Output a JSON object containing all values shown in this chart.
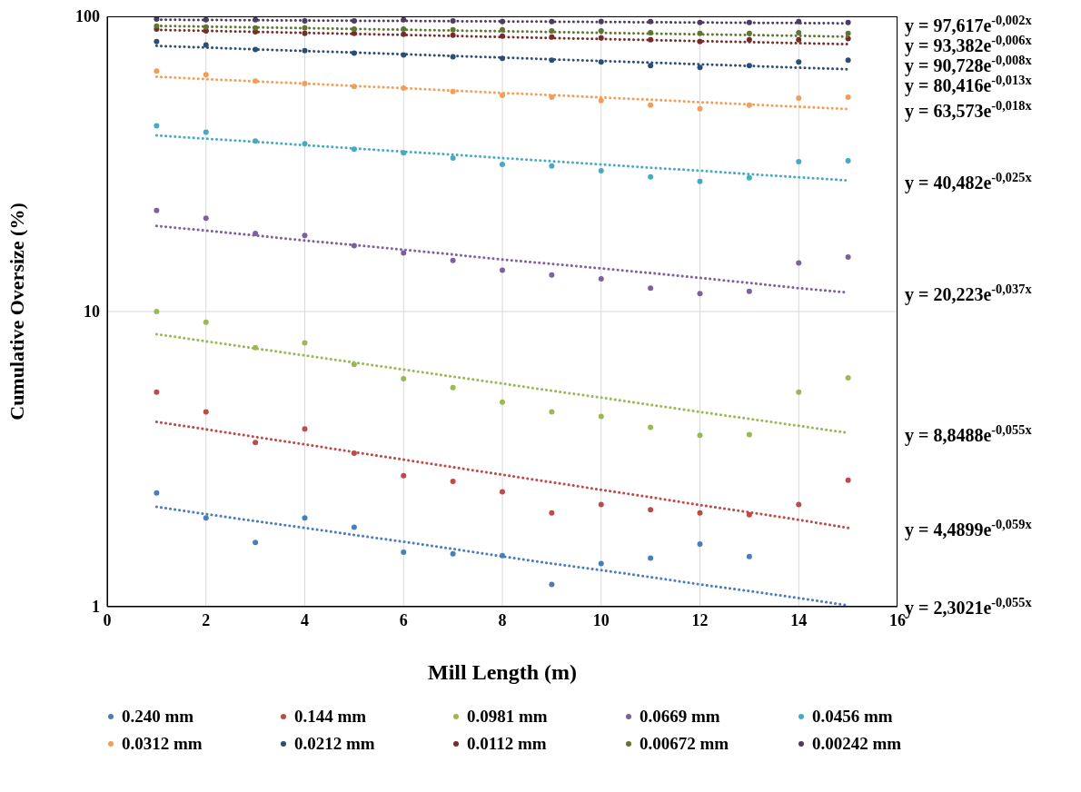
{
  "chart_data": {
    "type": "scatter",
    "xlabel": "Mill Length (m)",
    "ylabel": "Cumulative Oversize (%)",
    "x": [
      1,
      2,
      3,
      4,
      5,
      6,
      7,
      8,
      9,
      10,
      11,
      12,
      13,
      14,
      15
    ],
    "xlim": [
      0,
      16
    ],
    "xticks": [
      0,
      2,
      4,
      6,
      8,
      10,
      12,
      14,
      16
    ],
    "ylim": [
      1,
      100
    ],
    "yticks": [
      1,
      10,
      100
    ],
    "log": "y",
    "grid": true,
    "legend": "bottom",
    "marker": "circle",
    "series": [
      {
        "name": "0.240 mm",
        "color": "#4a7ebb",
        "values": [
          2.43,
          2.0,
          1.65,
          2.0,
          1.86,
          1.53,
          1.51,
          1.49,
          1.19,
          1.4,
          1.46,
          1.63,
          1.48,
          null,
          null
        ]
      },
      {
        "name": "0.144 mm",
        "color": "#be4b48",
        "values": [
          5.33,
          4.57,
          3.6,
          4.0,
          3.31,
          2.78,
          2.66,
          2.45,
          2.08,
          2.22,
          2.13,
          2.08,
          2.05,
          2.22,
          2.68
        ]
      },
      {
        "name": "0.0981 mm",
        "color": "#98b954",
        "values": [
          10.0,
          9.2,
          7.55,
          7.83,
          6.62,
          5.92,
          5.52,
          4.93,
          4.57,
          4.41,
          4.05,
          3.81,
          3.83,
          5.33,
          5.96
        ]
      },
      {
        "name": "0.0669 mm",
        "color": "#7d60a0",
        "values": [
          22.0,
          20.7,
          18.4,
          18.1,
          16.7,
          15.8,
          14.9,
          13.8,
          13.3,
          12.9,
          12.0,
          11.5,
          11.7,
          14.6,
          15.3
        ]
      },
      {
        "name": "0.0456 mm",
        "color": "#46aac5",
        "values": [
          42.6,
          40.5,
          37.8,
          37.0,
          35.5,
          34.5,
          33.1,
          31.5,
          31.1,
          30.0,
          28.6,
          27.6,
          28.4,
          32.2,
          32.4
        ]
      },
      {
        "name": "0.0312 mm",
        "color": "#f59d56",
        "values": [
          65.3,
          63.4,
          60.4,
          59.2,
          57.9,
          57.1,
          55.6,
          54.0,
          53.2,
          51.8,
          50.0,
          48.6,
          50.0,
          52.9,
          53.2
        ]
      },
      {
        "name": "0.0212 mm",
        "color": "#2c4d75",
        "values": [
          82.2,
          80.0,
          77.2,
          76.6,
          75.0,
          74.0,
          73.0,
          72.0,
          71.0,
          70.0,
          68.1,
          67.1,
          68.1,
          70.0,
          71.0
        ]
      },
      {
        "name": "0.0112 mm",
        "color": "#772c2a",
        "values": [
          90.6,
          89.3,
          88.7,
          87.5,
          87.5,
          86.9,
          86.3,
          85.7,
          85.1,
          84.5,
          83.3,
          82.2,
          83.3,
          83.3,
          84.0
        ]
      },
      {
        "name": "0.00672 mm",
        "color": "#5f7530",
        "values": [
          92.6,
          92.0,
          91.3,
          91.3,
          90.6,
          90.6,
          90.0,
          90.0,
          89.3,
          89.3,
          88.1,
          87.5,
          87.5,
          88.1,
          87.5
        ]
      },
      {
        "name": "0.00242 mm",
        "color": "#4d3b62",
        "values": [
          97.9,
          97.3,
          97.3,
          96.6,
          96.6,
          97.3,
          96.6,
          96.0,
          96.0,
          96.0,
          96.0,
          95.3,
          95.3,
          96.0,
          95.3
        ]
      },
      {
        "type": "line",
        "color": "#4a7ebb",
        "values": [
          2.18,
          2.06,
          1.95,
          1.85,
          1.75,
          1.66,
          1.57,
          1.48,
          1.4,
          1.33,
          1.26,
          1.19,
          1.13,
          1.07,
          1.01
        ],
        "line_style": "dotted",
        "marker": "none"
      },
      {
        "type": "line",
        "color": "#be4b48",
        "values": [
          4.23,
          3.99,
          3.76,
          3.55,
          3.34,
          3.15,
          2.97,
          2.8,
          2.64,
          2.49,
          2.35,
          2.21,
          2.09,
          1.97,
          1.85
        ],
        "line_style": "dotted",
        "marker": "none"
      },
      {
        "type": "line",
        "color": "#98b954",
        "values": [
          8.38,
          7.93,
          7.5,
          7.1,
          6.72,
          6.36,
          6.02,
          5.7,
          5.39,
          5.11,
          4.83,
          4.57,
          4.33,
          4.1,
          3.88
        ],
        "line_style": "dotted",
        "marker": "none"
      },
      {
        "type": "line",
        "color": "#7d60a0",
        "values": [
          19.5,
          18.8,
          18.1,
          17.4,
          16.8,
          16.2,
          15.6,
          15.0,
          14.5,
          14.0,
          13.5,
          13.0,
          12.5,
          12.0,
          11.6
        ],
        "line_style": "dotted",
        "marker": "none"
      },
      {
        "type": "line",
        "color": "#46aac5",
        "values": [
          39.5,
          38.5,
          37.6,
          36.6,
          35.7,
          34.8,
          34.0,
          33.1,
          32.3,
          31.5,
          30.7,
          30.0,
          29.2,
          28.5,
          27.8
        ],
        "line_style": "dotted",
        "marker": "none"
      },
      {
        "type": "line",
        "color": "#f59d56",
        "values": [
          62.4,
          61.3,
          60.2,
          59.2,
          58.1,
          57.1,
          56.0,
          55.0,
          54.1,
          53.1,
          52.2,
          51.2,
          50.3,
          49.4,
          48.5
        ],
        "line_style": "dotted",
        "marker": "none"
      },
      {
        "type": "line",
        "color": "#2c4d75",
        "values": [
          79.4,
          78.4,
          77.3,
          76.3,
          75.4,
          74.4,
          73.4,
          72.5,
          71.5,
          70.6,
          69.7,
          68.8,
          67.9,
          67.0,
          66.2
        ],
        "line_style": "dotted",
        "marker": "none"
      },
      {
        "type": "line",
        "color": "#772c2a",
        "values": [
          90.0,
          89.3,
          88.6,
          87.9,
          87.2,
          86.5,
          85.8,
          85.1,
          84.4,
          83.8,
          83.1,
          82.4,
          81.8,
          81.1,
          80.5
        ],
        "line_style": "dotted",
        "marker": "none"
      },
      {
        "type": "line",
        "color": "#5f7530",
        "values": [
          92.8,
          92.3,
          91.7,
          91.2,
          90.6,
          90.1,
          89.5,
          89.0,
          88.5,
          87.9,
          87.4,
          86.9,
          86.4,
          85.9,
          85.3
        ],
        "line_style": "dotted",
        "marker": "none"
      },
      {
        "type": "line",
        "color": "#4d3b62",
        "values": [
          97.4,
          97.2,
          97.0,
          96.8,
          96.6,
          96.5,
          96.3,
          96.1,
          95.9,
          95.7,
          95.5,
          95.3,
          95.1,
          94.9,
          94.7
        ],
        "line_style": "dotted",
        "marker": "none"
      }
    ],
    "annotations": [
      "y = 2,3021e$^{-0,055x}$",
      "y = 4,4899e$^{-0,059x}$",
      "y = 8,8488e$^{-0,055x}$",
      "y = 20,223e$^{-0,037x}$",
      "y = 40,482e$^{-0,025x}$",
      "y = 63,573e$^{-0,018x}$",
      "y = 80,416e$^{-0,013x}$",
      "y = 90,728e$^{-0,008x}$",
      "y = 93,382e$^{-0,006x}$",
      "y = 97,617e$^{-0,002x}$"
    ]
  }
}
